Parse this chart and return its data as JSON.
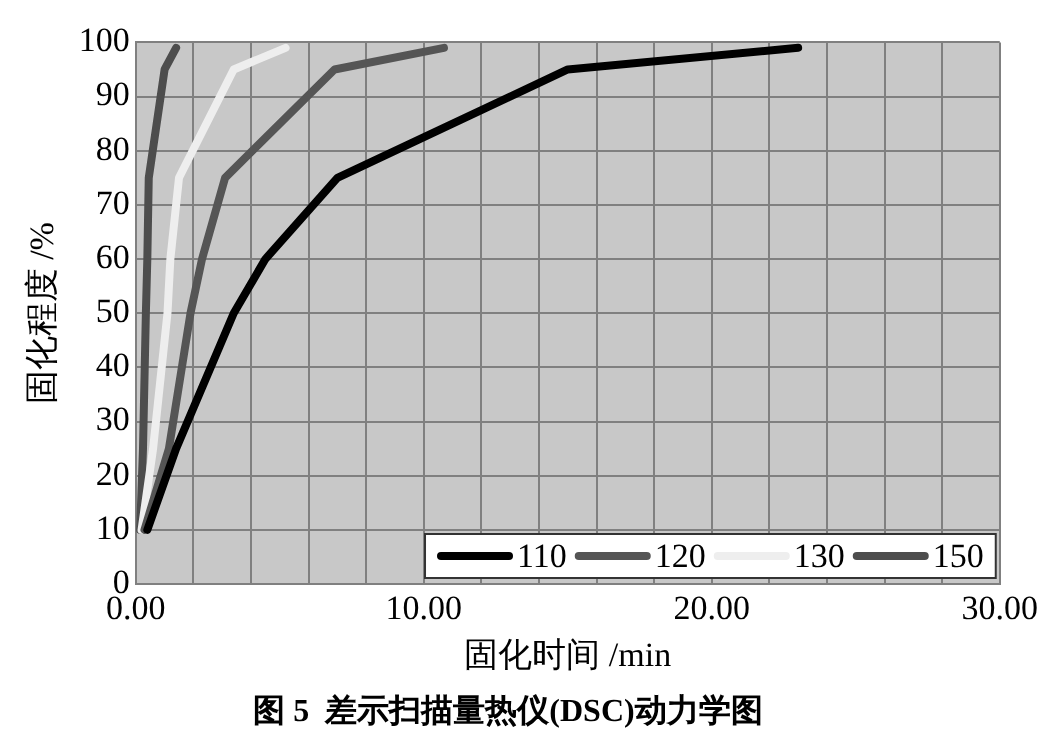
{
  "chart_data": {
    "type": "line",
    "title": "图 5  差示扫描量热仪(DSC)动力学图",
    "xlabel": "固化时间 /min",
    "ylabel": "固化程度 /%",
    "xlim": [
      0,
      30
    ],
    "xticks": [
      {
        "value": 0,
        "label": "0.00"
      },
      {
        "value": 2,
        "label": null
      },
      {
        "value": 4,
        "label": null
      },
      {
        "value": 6,
        "label": null
      },
      {
        "value": 8,
        "label": null
      },
      {
        "value": 10,
        "label": "10.00"
      },
      {
        "value": 12,
        "label": null
      },
      {
        "value": 14,
        "label": null
      },
      {
        "value": 16,
        "label": null
      },
      {
        "value": 18,
        "label": null
      },
      {
        "value": 20,
        "label": "20.00"
      },
      {
        "value": 22,
        "label": null
      },
      {
        "value": 24,
        "label": null
      },
      {
        "value": 26,
        "label": null
      },
      {
        "value": 28,
        "label": null
      },
      {
        "value": 30,
        "label": "30.00"
      }
    ],
    "ylim": [
      0,
      100
    ],
    "yticks": [
      0,
      10,
      20,
      30,
      40,
      50,
      60,
      70,
      80,
      90,
      100
    ],
    "grid": true,
    "legend": "bottom right",
    "marker": "none",
    "line_style": "solid",
    "series": [
      {
        "name": "110",
        "color": "#000000",
        "x": [
          0.4,
          1.4,
          3.4,
          4.5,
          7,
          15,
          23
        ],
        "values": [
          10,
          25,
          50,
          60,
          75,
          95,
          99
        ]
      },
      {
        "name": "120",
        "color": "#555555",
        "x": [
          0.3,
          1.15,
          1.9,
          2.3,
          3.1,
          6.9,
          10.7
        ],
        "values": [
          10,
          25,
          50,
          60,
          75,
          95,
          99
        ]
      },
      {
        "name": "130",
        "color": "#eeeeee",
        "x": [
          0.2,
          0.6,
          1.1,
          1.2,
          1.5,
          3.4,
          5.2
        ],
        "values": [
          10,
          25,
          50,
          60,
          75,
          95,
          99
        ]
      },
      {
        "name": "150",
        "color": "#4d4d4d",
        "x": [
          0.15,
          0.25,
          0.35,
          0.4,
          0.45,
          1,
          1.4
        ],
        "values": [
          10,
          25,
          50,
          60,
          75,
          95,
          99
        ]
      }
    ]
  }
}
